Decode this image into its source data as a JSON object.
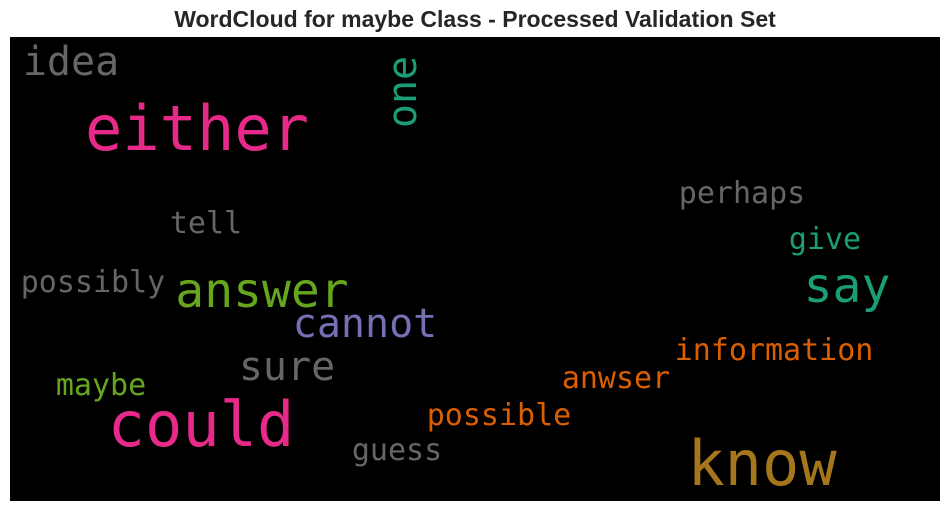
{
  "title": "WordCloud for maybe Class - Processed Validation Set",
  "words": [
    {
      "text": "idea",
      "color": "#666666"
    },
    {
      "text": "either",
      "color": "#e7298a"
    },
    {
      "text": "one",
      "color": "#1b9e77"
    },
    {
      "text": "perhaps",
      "color": "#666666"
    },
    {
      "text": "tell",
      "color": "#666666"
    },
    {
      "text": "give",
      "color": "#1b9e77"
    },
    {
      "text": "possibly",
      "color": "#666666"
    },
    {
      "text": "answer",
      "color": "#66a61e"
    },
    {
      "text": "say",
      "color": "#1b9e77"
    },
    {
      "text": "cannot",
      "color": "#7570b3"
    },
    {
      "text": "sure",
      "color": "#666666"
    },
    {
      "text": "information",
      "color": "#d95f02"
    },
    {
      "text": "maybe",
      "color": "#66a61e"
    },
    {
      "text": "anwser",
      "color": "#d95f02"
    },
    {
      "text": "could",
      "color": "#e7298a"
    },
    {
      "text": "possible",
      "color": "#d95f02"
    },
    {
      "text": "guess",
      "color": "#666666"
    },
    {
      "text": "know",
      "color": "#a6761d"
    }
  ]
}
